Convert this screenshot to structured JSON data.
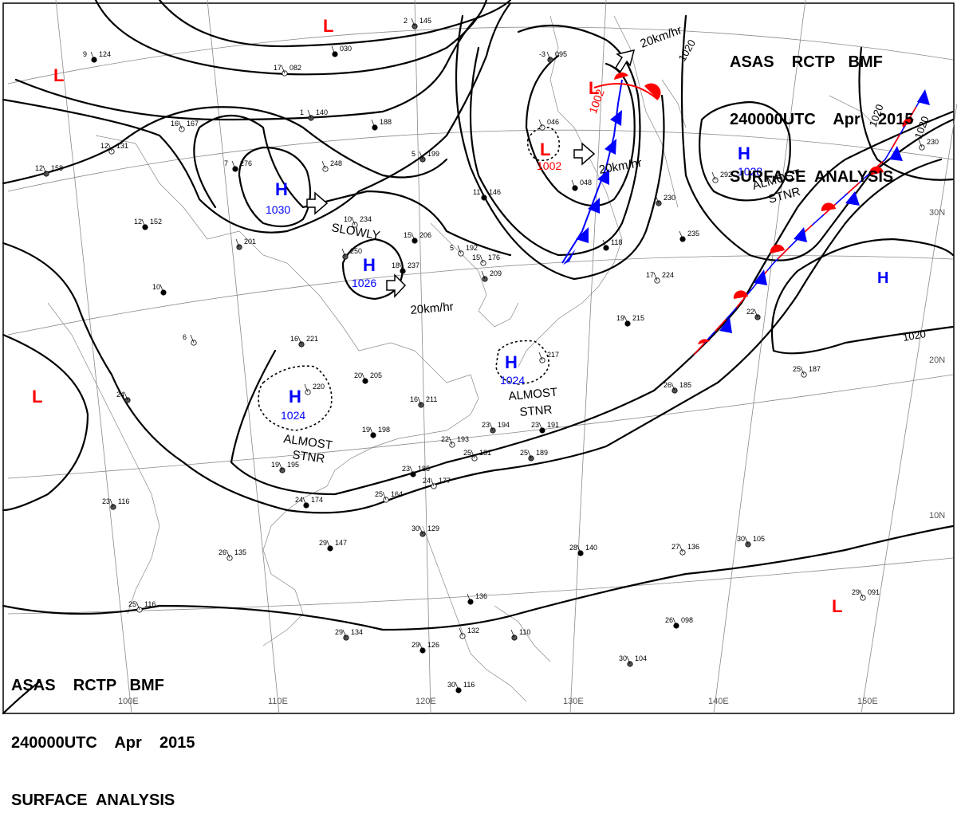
{
  "header": {
    "line1": "ASAS    RCTP   BMF",
    "line2": "240000UTC    Apr    2015",
    "line3": "SURFACE  ANALYSIS"
  },
  "colors": {
    "high": "#0000ff",
    "low": "#ff0000",
    "isobar": "#000000",
    "grid": "#808080"
  },
  "lat_labels": [
    "30N",
    "20N",
    "10N"
  ],
  "lon_labels": [
    "100E",
    "110E",
    "120E",
    "130E",
    "140E",
    "150E"
  ],
  "isobar_labels": [
    "1020",
    "1020",
    "1020",
    "1020"
  ],
  "pressure_centers": [
    {
      "type": "H",
      "value": "1030"
    },
    {
      "type": "H",
      "value": "1026"
    },
    {
      "type": "H",
      "value": "1024"
    },
    {
      "type": "H",
      "value": "1024"
    },
    {
      "type": "H",
      "value": "1028"
    },
    {
      "type": "H",
      "value": ""
    },
    {
      "type": "L",
      "value": "1002"
    },
    {
      "type": "L",
      "value": "1002"
    },
    {
      "type": "L",
      "value": ""
    },
    {
      "type": "L",
      "value": ""
    },
    {
      "type": "L",
      "value": ""
    },
    {
      "type": "L",
      "value": ""
    }
  ],
  "annotations": [
    "20km/hr",
    "20km/hr",
    "20km/hr",
    "SLOWLY",
    "ALMOST",
    "STNR",
    "ALMOST",
    "STNR",
    "ALMOST",
    "STNR"
  ],
  "stations": [
    {
      "t": "9",
      "p": "124"
    },
    {
      "t": "17",
      "p": "082"
    },
    {
      "t": "2",
      "p": "145"
    },
    {
      "t": "",
      "p": "030"
    },
    {
      "t": "16",
      "p": "167"
    },
    {
      "t": "1",
      "p": "140"
    },
    {
      "t": "",
      "p": "188"
    },
    {
      "t": "12",
      "p": "131"
    },
    {
      "t": "12",
      "p": "158"
    },
    {
      "t": "7",
      "p": "276"
    },
    {
      "t": "",
      "p": "248"
    },
    {
      "t": "5",
      "p": "199"
    },
    {
      "t": "11",
      "p": "146"
    },
    {
      "t": "",
      "p": "046"
    },
    {
      "t": "-3",
      "p": "095"
    },
    {
      "t": "12",
      "p": "152"
    },
    {
      "t": "10",
      "p": "234"
    },
    {
      "t": "",
      "p": "201"
    },
    {
      "t": "15",
      "p": "206"
    },
    {
      "t": "5",
      "p": "192"
    },
    {
      "t": "",
      "p": "250"
    },
    {
      "t": "18",
      "p": "237"
    },
    {
      "t": "15",
      "p": "176"
    },
    {
      "t": "",
      "p": "209"
    },
    {
      "t": "10",
      "p": ""
    },
    {
      "t": "6",
      "p": ""
    },
    {
      "t": "16",
      "p": "221"
    },
    {
      "t": "20",
      "p": "205"
    },
    {
      "t": "",
      "p": "220"
    },
    {
      "t": "16",
      "p": "211"
    },
    {
      "t": "19",
      "p": "198"
    },
    {
      "t": "22",
      "p": "193"
    },
    {
      "t": "23",
      "p": "194"
    },
    {
      "t": "23",
      "p": "191"
    },
    {
      "t": "25",
      "p": "181"
    },
    {
      "t": "25",
      "p": "189"
    },
    {
      "t": "23",
      "p": "185"
    },
    {
      "t": "24",
      "p": "177"
    },
    {
      "t": "19",
      "p": "195"
    },
    {
      "t": "24",
      "p": "174"
    },
    {
      "t": "25",
      "p": "164"
    },
    {
      "t": "23",
      "p": "116"
    },
    {
      "t": "29",
      "p": "147"
    },
    {
      "t": "26",
      "p": "135"
    },
    {
      "t": "30",
      "p": "129"
    },
    {
      "t": "28",
      "p": "140"
    },
    {
      "t": "27",
      "p": "136"
    },
    {
      "t": "30",
      "p": "105"
    },
    {
      "t": "",
      "p": "136"
    },
    {
      "t": "25",
      "p": "116"
    },
    {
      "t": "29",
      "p": "134"
    },
    {
      "t": "29",
      "p": "126"
    },
    {
      "t": "",
      "p": "132"
    },
    {
      "t": "",
      "p": "110"
    },
    {
      "t": "26",
      "p": "098"
    },
    {
      "t": "29",
      "p": "091"
    },
    {
      "t": "30",
      "p": "104"
    },
    {
      "t": "30",
      "p": "116"
    },
    {
      "t": "",
      "p": "292"
    },
    {
      "t": "",
      "p": "230"
    },
    {
      "t": "",
      "p": "235"
    },
    {
      "t": "17",
      "p": "224"
    },
    {
      "t": "22",
      "p": ""
    },
    {
      "t": "19",
      "p": "215"
    },
    {
      "t": "25",
      "p": "187"
    },
    {
      "t": "26",
      "p": "185"
    },
    {
      "t": "",
      "p": "118"
    },
    {
      "t": "",
      "p": "217"
    },
    {
      "t": "24",
      "p": ""
    },
    {
      "t": "",
      "p": "048"
    },
    {
      "t": "",
      "p": "230"
    }
  ]
}
